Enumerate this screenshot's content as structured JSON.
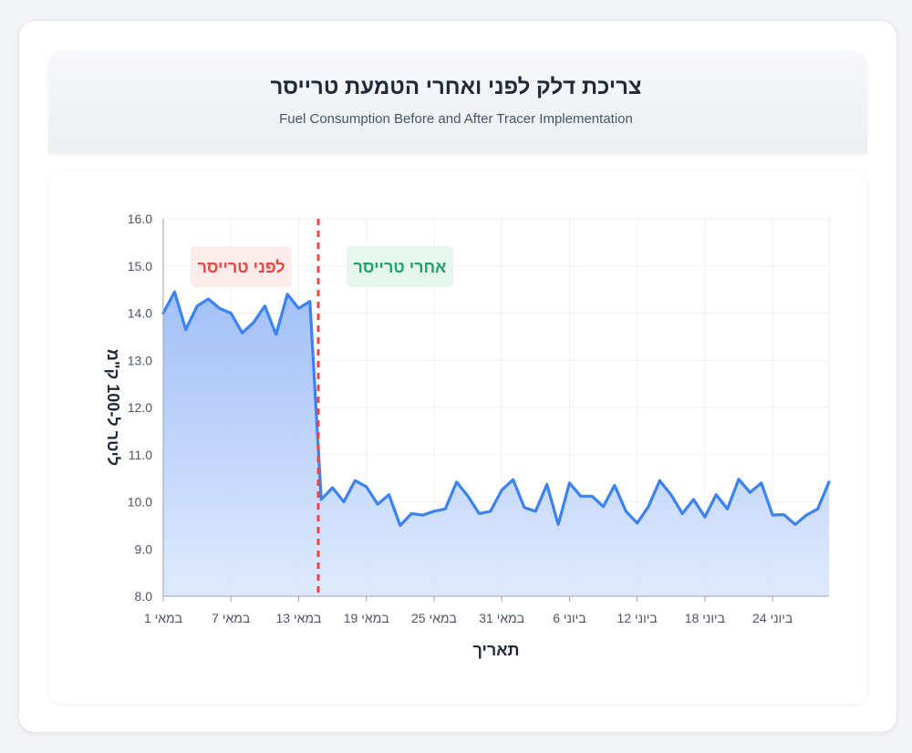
{
  "header": {
    "title": "צריכת דלק לפני ואחרי הטמעת טרייסר",
    "subtitle": "Fuel Consumption Before and After Tracer Implementation"
  },
  "colors": {
    "line": "#3b82f6",
    "area": "#93b4f5",
    "divider": "#ef4444",
    "before_text": "#ef4444",
    "before_bg": "#fdecec",
    "after_text": "#22a06b",
    "after_bg": "#e6f6ee",
    "grid": "#eceff3",
    "axis": "#9ca3af"
  },
  "chart_data": {
    "type": "area",
    "xlabel": "תאריך",
    "ylabel": "ליטר ל-100 ק\"מ",
    "ylim": [
      8.0,
      16.0
    ],
    "yticks": [
      "8.0",
      "9.0",
      "10.0",
      "11.0",
      "12.0",
      "13.0",
      "14.0",
      "15.0",
      "16.0"
    ],
    "xticks": [
      "1 במאי",
      "7 במאי",
      "13 במאי",
      "19 במאי",
      "25 במאי",
      "31 במאי",
      "6 ביוני",
      "12 ביוני",
      "18 ביוני",
      "24 ביוני"
    ],
    "x_range_days": [
      0,
      59
    ],
    "tracer_start_day": 14,
    "grid": true,
    "annotations": {
      "before": "לפני טרייסר",
      "after": "אחרי טרייסר"
    },
    "values": [
      14.0,
      14.45,
      13.65,
      14.15,
      14.3,
      14.1,
      14.0,
      13.58,
      13.8,
      14.15,
      13.55,
      14.4,
      14.1,
      14.25,
      10.05,
      10.3,
      10.0,
      10.45,
      10.32,
      9.95,
      10.15,
      9.5,
      9.75,
      9.72,
      9.8,
      9.85,
      10.42,
      10.12,
      9.75,
      9.8,
      10.25,
      10.47,
      9.88,
      9.8,
      10.37,
      9.52,
      10.4,
      10.12,
      10.12,
      9.9,
      10.35,
      9.8,
      9.55,
      9.9,
      10.45,
      10.15,
      9.75,
      10.05,
      9.68,
      10.15,
      9.85,
      10.48,
      10.2,
      10.4,
      9.72,
      9.73,
      9.52,
      9.72,
      9.85,
      10.42
    ]
  }
}
